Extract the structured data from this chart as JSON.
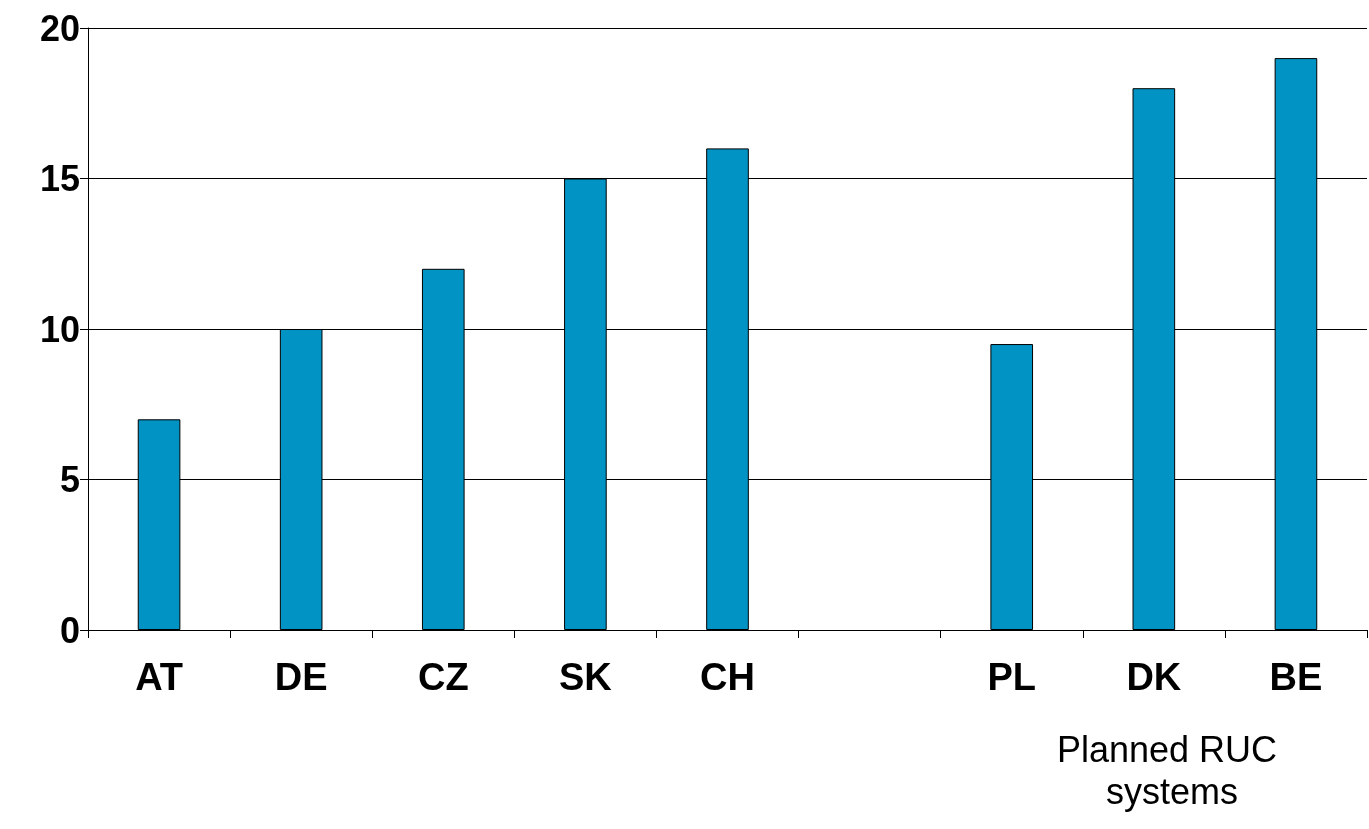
{
  "chart_data": {
    "type": "bar",
    "categories": [
      "AT",
      "DE",
      "CZ",
      "SK",
      "CH",
      null,
      "PL",
      "DK",
      "BE"
    ],
    "values": [
      7,
      10,
      12,
      15,
      16,
      null,
      9.5,
      18,
      19
    ],
    "color": "#0093c4",
    "ylim": [
      0,
      20
    ],
    "yticks": [
      0,
      5,
      10,
      15,
      20
    ],
    "grid": "y",
    "annotations": [
      "Planned RUC systems"
    ]
  }
}
